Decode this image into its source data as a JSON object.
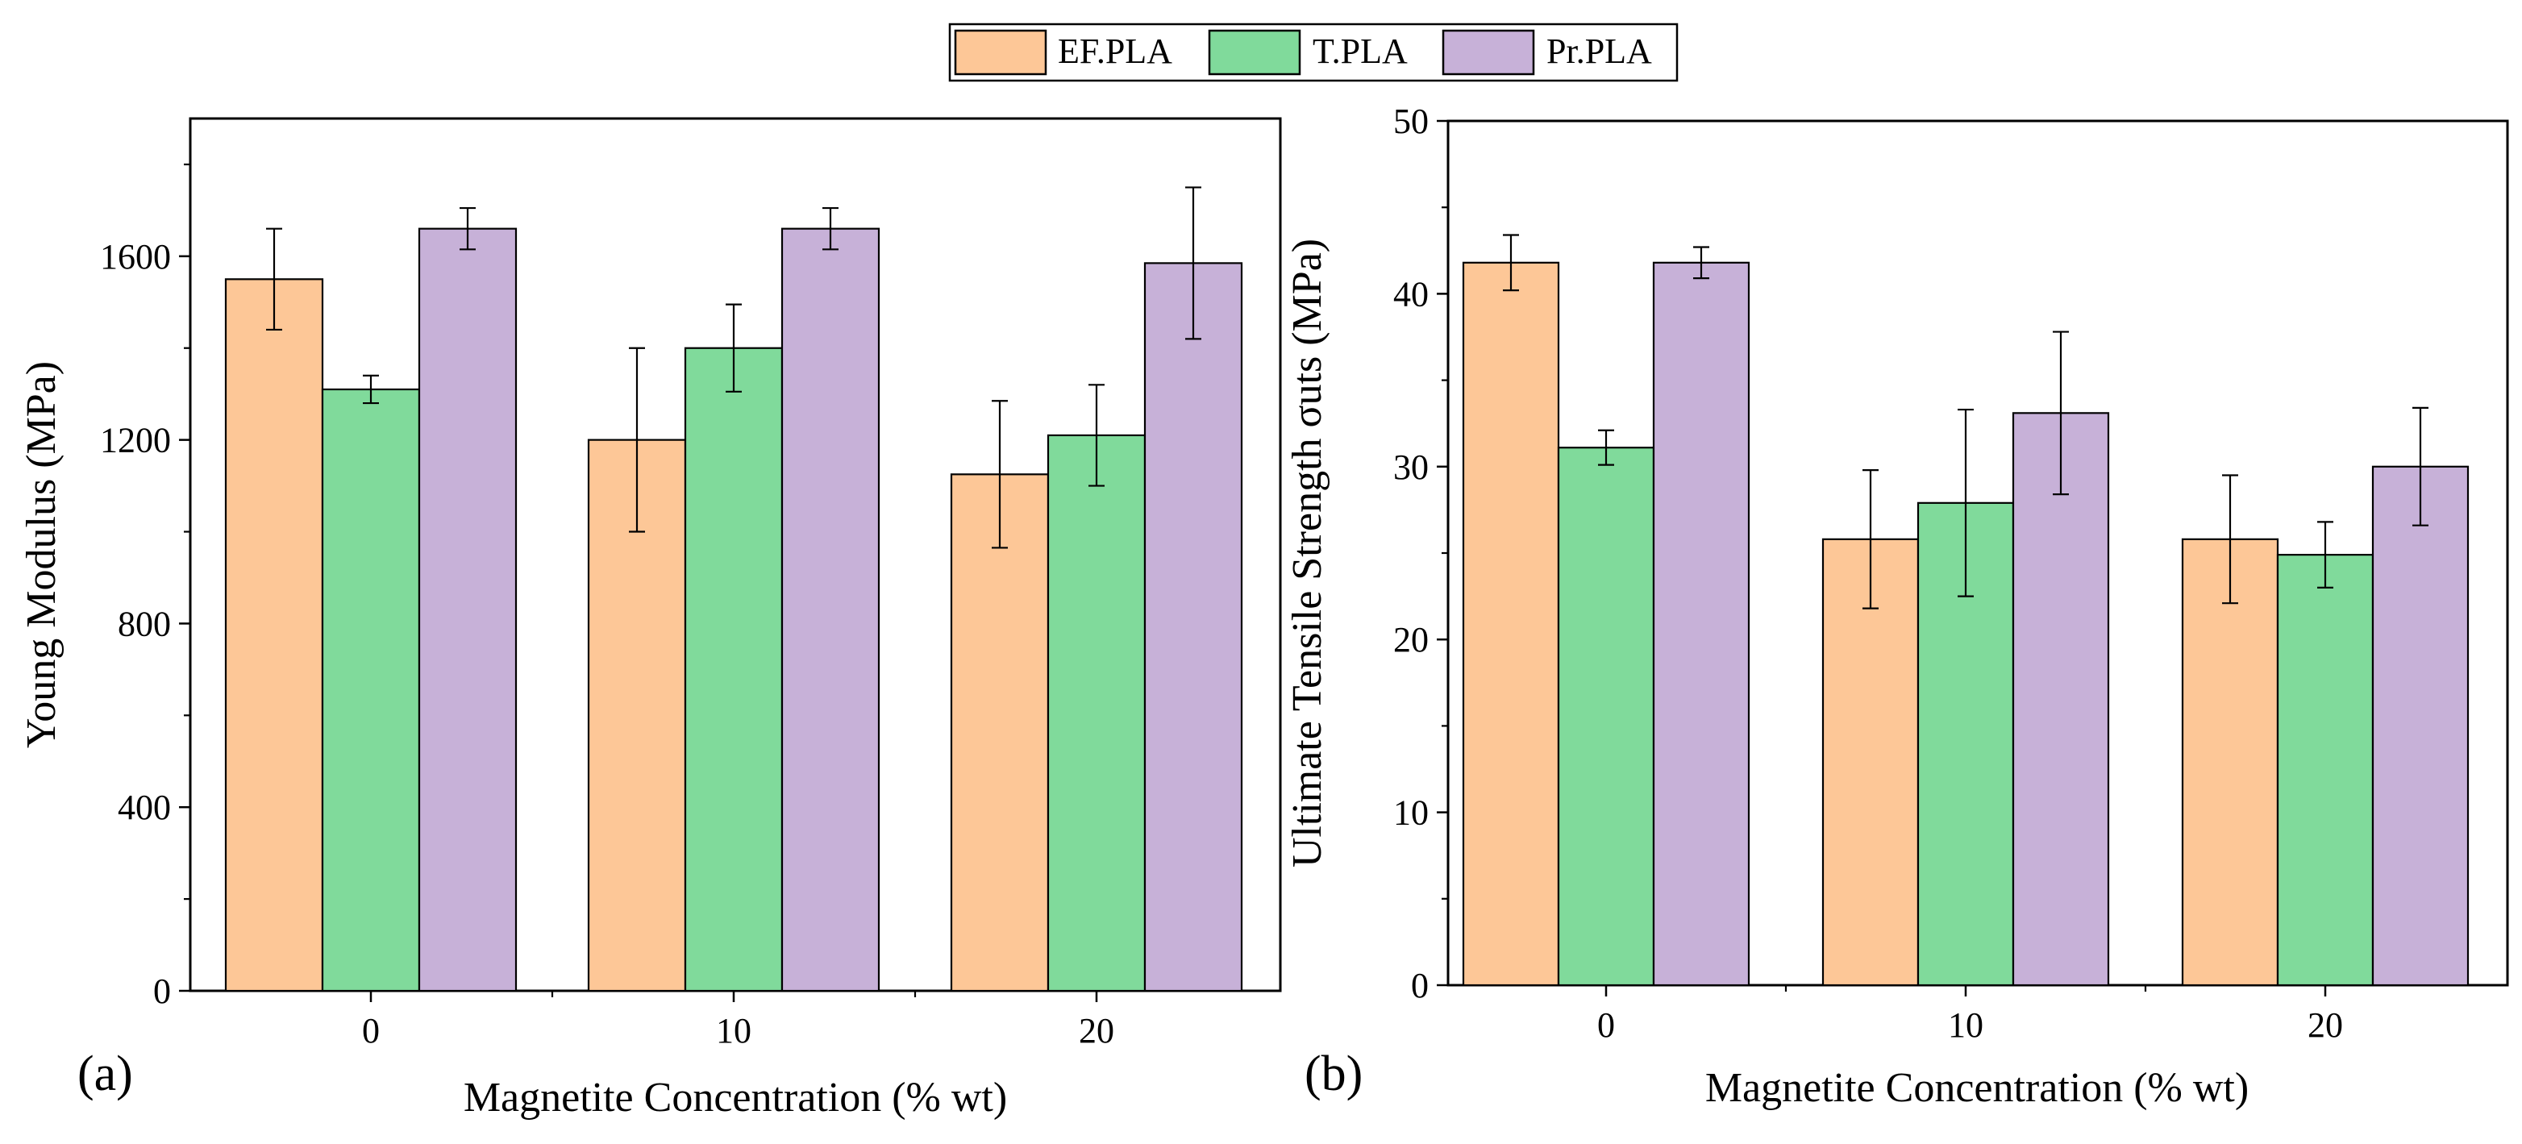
{
  "colors": {
    "EF.PLA": "#FDC797",
    "T.PLA": "#80DA9B",
    "Pr.PLA": "#C7B1D8",
    "axis": "#000000"
  },
  "legend": {
    "items": [
      "EF.PLA",
      "T.PLA",
      "Pr.PLA"
    ],
    "placement": "top-center"
  },
  "chart_data": [
    {
      "type": "bar",
      "panel_label": "(a)",
      "categories": [
        "0",
        "10",
        "20"
      ],
      "xlabel": "Magnetite Concentration (% wt)",
      "ylabel": "Young Modulus (MPa)",
      "ylim": [
        0,
        1900
      ],
      "yticks": [
        0,
        400,
        800,
        1200,
        1600
      ],
      "series": [
        {
          "name": "EF.PLA",
          "values": [
            1550,
            1200,
            1125
          ],
          "errors": [
            110,
            200,
            160
          ]
        },
        {
          "name": "T.PLA",
          "values": [
            1310,
            1400,
            1210
          ],
          "errors": [
            30,
            95,
            110
          ]
        },
        {
          "name": "Pr.PLA",
          "values": [
            1660,
            1660,
            1585
          ],
          "errors": [
            45,
            45,
            165
          ]
        }
      ]
    },
    {
      "type": "bar",
      "panel_label": "(b)",
      "categories": [
        "0",
        "10",
        "20"
      ],
      "xlabel": "Magnetite Concentration (% wt)",
      "ylabel": "Ultimate Tensile Strength σuts (MPa)",
      "ylim": [
        0,
        50
      ],
      "yticks": [
        0,
        10,
        20,
        30,
        40,
        50
      ],
      "series": [
        {
          "name": "EF.PLA",
          "values": [
            41.8,
            25.8,
            25.8
          ],
          "errors": [
            1.6,
            4.0,
            3.7
          ]
        },
        {
          "name": "T.PLA",
          "values": [
            31.1,
            27.9,
            24.9
          ],
          "errors": [
            1.0,
            5.4,
            1.9
          ]
        },
        {
          "name": "Pr.PLA",
          "values": [
            41.8,
            33.1,
            30.0
          ],
          "errors": [
            0.9,
            4.7,
            3.4
          ]
        }
      ]
    }
  ]
}
